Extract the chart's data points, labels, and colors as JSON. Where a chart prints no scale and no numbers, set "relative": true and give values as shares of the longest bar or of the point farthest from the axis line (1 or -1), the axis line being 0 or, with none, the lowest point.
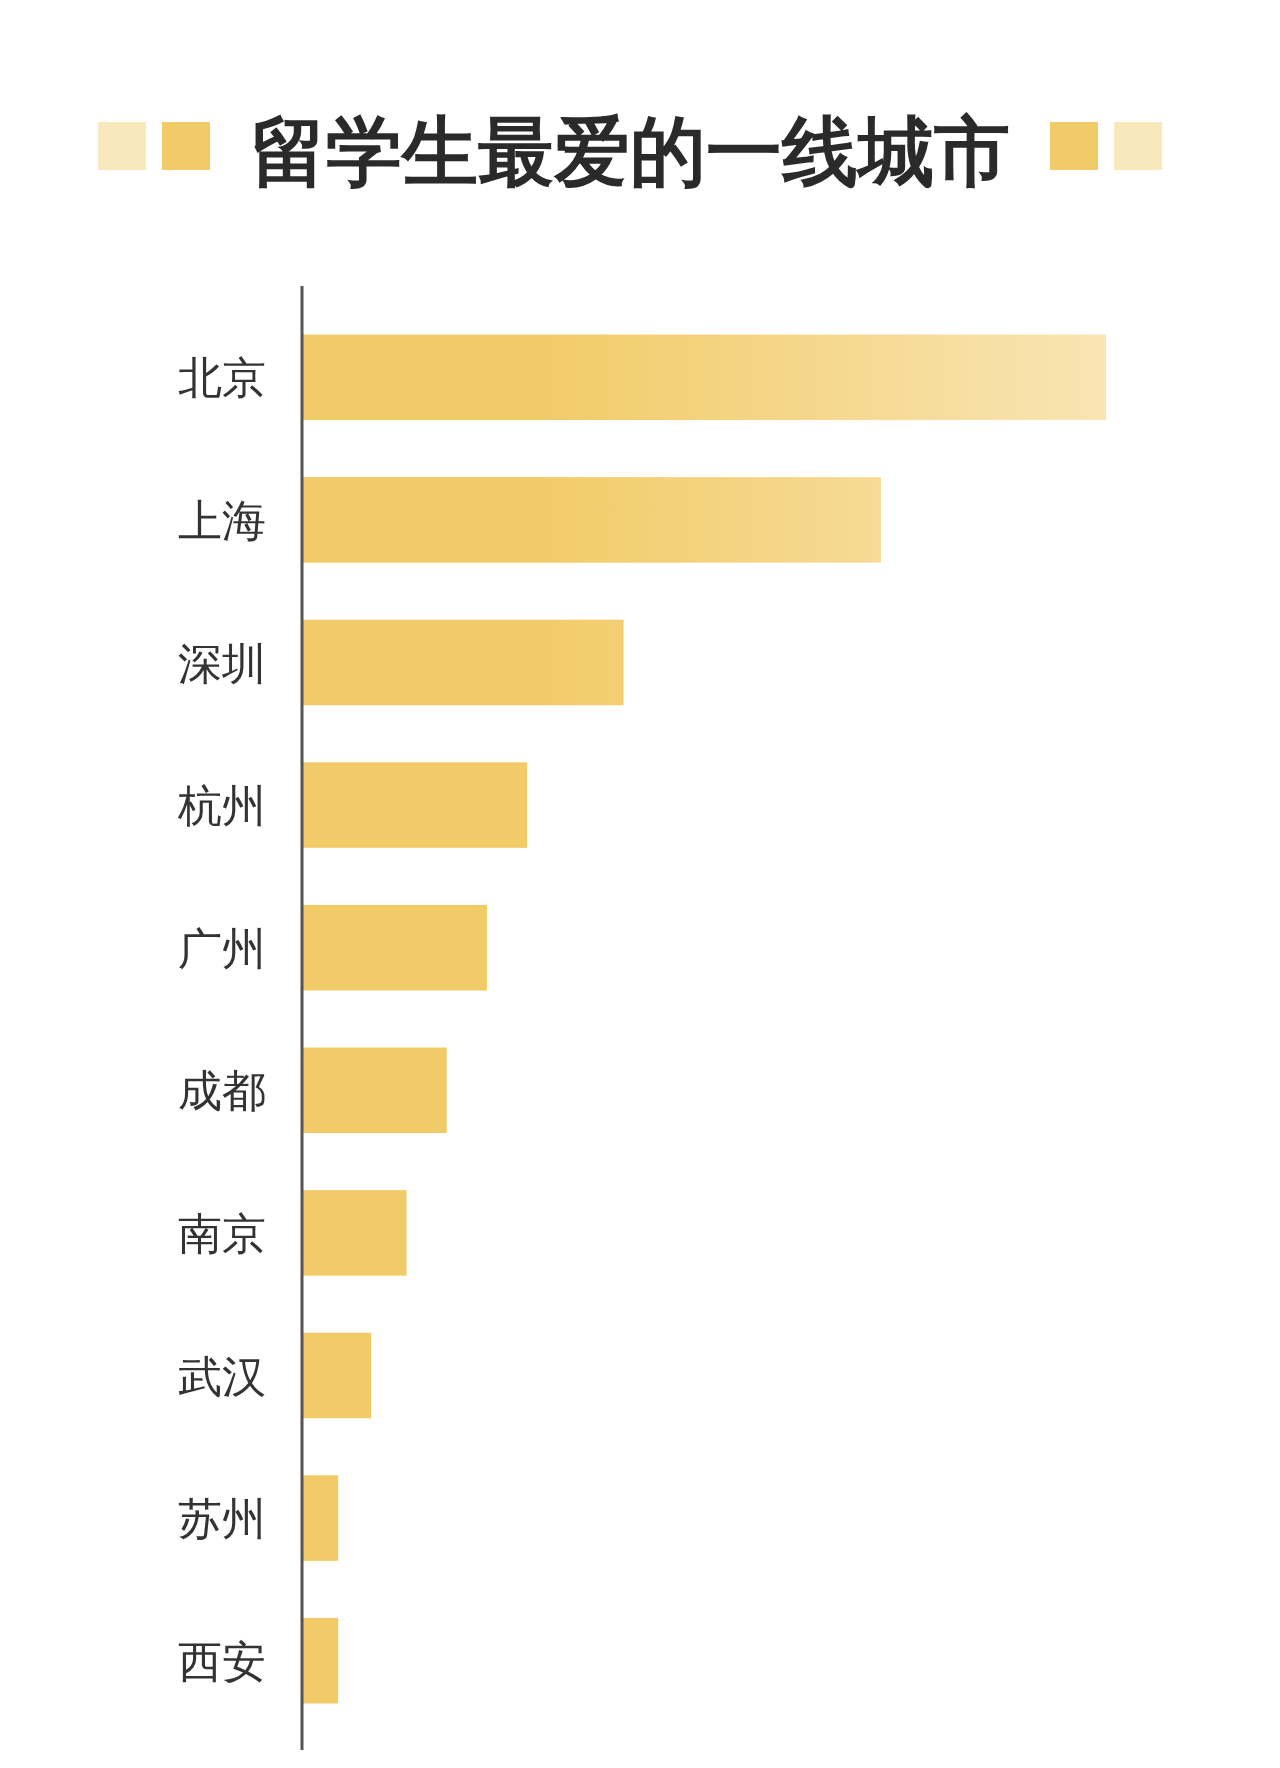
{
  "chart_data": {
    "type": "bar",
    "orientation": "horizontal",
    "relative": true,
    "title": "留学生最爱的一线城市",
    "categories": [
      "北京",
      "上海",
      "深圳",
      "杭州",
      "广州",
      "成都",
      "南京",
      "武汉",
      "苏州",
      "西安"
    ],
    "values": [
      1,
      0.72,
      0.4,
      0.28,
      0.23,
      0.18,
      0.13,
      0.086,
      0.045,
      0.045
    ],
    "color": "#f2cb69"
  }
}
